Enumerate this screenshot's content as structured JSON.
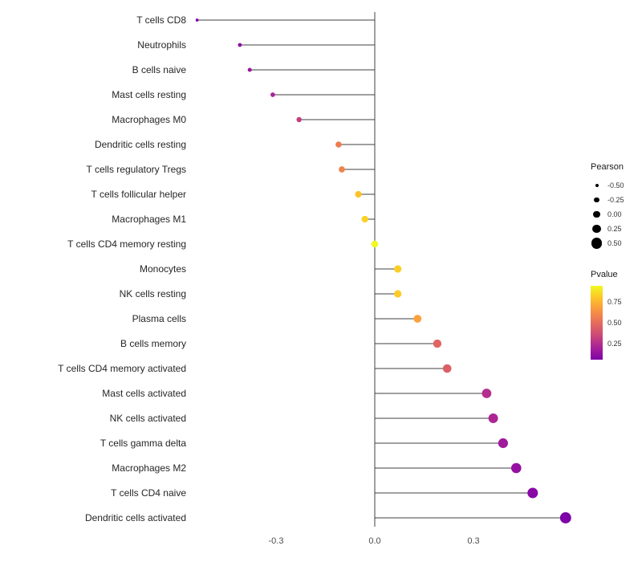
{
  "chart_data": {
    "type": "scatter",
    "variant": "lollipop",
    "title": "",
    "xlabel": "",
    "ylabel": "",
    "grid": "off",
    "legend_position": "right",
    "x_ticks": [
      -0.3,
      0.0,
      0.3
    ],
    "x_tick_labels": [
      "-0.3",
      "0.0",
      "0.3"
    ],
    "xlim": [
      -0.65,
      0.68
    ],
    "stem_color": "#404040",
    "axis_text_color": "#4d4d4d",
    "label_text_color": "#262626",
    "points": [
      {
        "label": "T cells CD8",
        "pearson": -0.54,
        "color": "#7a02a8"
      },
      {
        "label": "Neutrophils",
        "pearson": -0.41,
        "color": "#8e0ca4"
      },
      {
        "label": "B cells naive",
        "pearson": -0.38,
        "color": "#99159f"
      },
      {
        "label": "Mast cells resting",
        "pearson": -0.31,
        "color": "#aa2395"
      },
      {
        "label": "Macrophages M0",
        "pearson": -0.23,
        "color": "#c33d80"
      },
      {
        "label": "Dendritic cells resting",
        "pearson": -0.11,
        "color": "#ee7b51"
      },
      {
        "label": "T cells regulatory  Tregs",
        "pearson": -0.1,
        "color": "#f0834c"
      },
      {
        "label": "T cells follicular helper",
        "pearson": -0.05,
        "color": "#fdc227"
      },
      {
        "label": "Macrophages M1",
        "pearson": -0.03,
        "color": "#fbd224"
      },
      {
        "label": "T cells CD4 memory resting",
        "pearson": 0.0,
        "color": "#f0f921"
      },
      {
        "label": "Monocytes",
        "pearson": 0.07,
        "color": "#fcce25"
      },
      {
        "label": "NK cells resting",
        "pearson": 0.07,
        "color": "#fccc25"
      },
      {
        "label": "Plasma cells",
        "pearson": 0.13,
        "color": "#fba23c"
      },
      {
        "label": "B cells memory",
        "pearson": 0.19,
        "color": "#e16462"
      },
      {
        "label": "T cells CD4 memory activated",
        "pearson": 0.22,
        "color": "#dd5e66"
      },
      {
        "label": "Mast cells activated",
        "pearson": 0.34,
        "color": "#b42e8d"
      },
      {
        "label": "NK cells activated",
        "pearson": 0.36,
        "color": "#ac2694"
      },
      {
        "label": "T cells gamma delta",
        "pearson": 0.39,
        "color": "#a01a9c"
      },
      {
        "label": "Macrophages M2",
        "pearson": 0.43,
        "color": "#9411a1"
      },
      {
        "label": "T cells CD4 naive",
        "pearson": 0.48,
        "color": "#8808a6"
      },
      {
        "label": "Dendritic cells activated",
        "pearson": 0.58,
        "color": "#7e03a8"
      }
    ],
    "legend_size": {
      "title": "Pearson",
      "entries": [
        {
          "label": "-0.50",
          "value": -0.5
        },
        {
          "label": "-0.25",
          "value": -0.25
        },
        {
          "label": "0.00",
          "value": 0.0
        },
        {
          "label": "0.25",
          "value": 0.25
        },
        {
          "label": "0.50",
          "value": 0.5
        }
      ]
    },
    "legend_color": {
      "title": "Pvalue",
      "range_top": 0.95,
      "range_bottom": 0.05,
      "ticks": [
        {
          "label": "0.75",
          "value": 0.75
        },
        {
          "label": "0.50",
          "value": 0.5
        },
        {
          "label": "0.25",
          "value": 0.25
        }
      ],
      "gradient": [
        "#f0f921",
        "#fdc328",
        "#f89441",
        "#e66c5c",
        "#cc4977",
        "#a82296",
        "#7e03a8"
      ]
    }
  }
}
